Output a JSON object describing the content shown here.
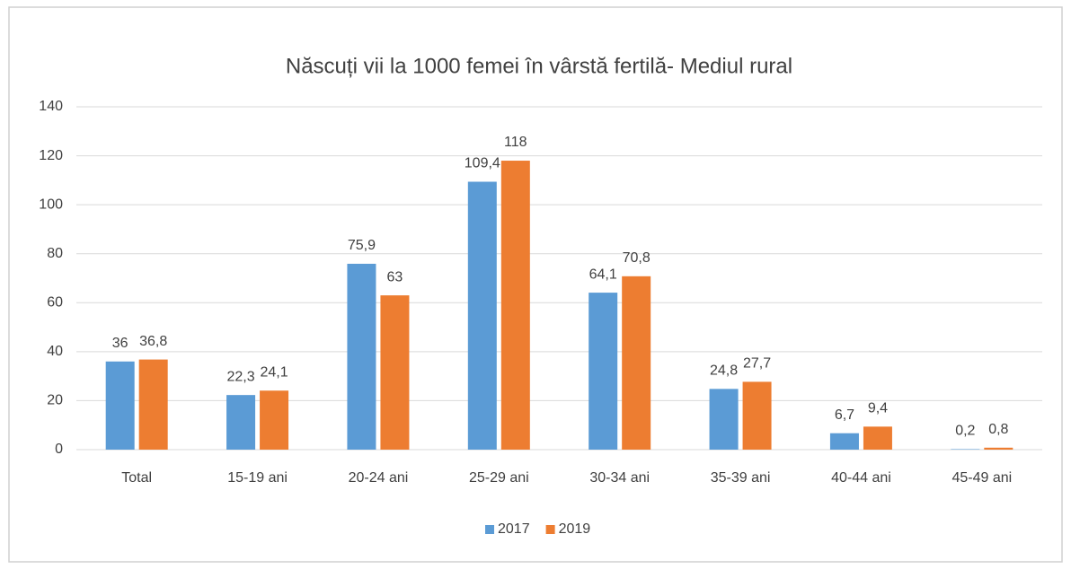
{
  "chart_data": {
    "type": "bar",
    "title": "Născuți vii la 1000 femei în vârstă fertilă- Mediul rural",
    "categories": [
      "Total",
      "15-19 ani",
      "20-24 ani",
      "25-29 ani",
      "30-34 ani",
      "35-39 ani",
      "40-44 ani",
      "45-49 ani"
    ],
    "series": [
      {
        "name": "2017",
        "color": "#5b9bd5",
        "values": [
          36,
          22.3,
          75.9,
          109.4,
          64.1,
          24.8,
          6.7,
          0.2
        ],
        "value_labels": [
          "36",
          "22,3",
          "75,9",
          "109,4",
          "64,1",
          "24,8",
          "6,7",
          "0,2"
        ]
      },
      {
        "name": "2019",
        "color": "#ed7d31",
        "values": [
          36.8,
          24.1,
          63,
          118,
          70.8,
          27.7,
          9.4,
          0.8
        ],
        "value_labels": [
          "36,8",
          "24,1",
          "63",
          "118",
          "70,8",
          "27,7",
          "9,4",
          "0,8"
        ]
      }
    ],
    "ylim": [
      0,
      140
    ],
    "yticks": [
      0,
      20,
      40,
      60,
      80,
      100,
      120,
      140
    ],
    "grid": true,
    "legend": "bottom"
  }
}
